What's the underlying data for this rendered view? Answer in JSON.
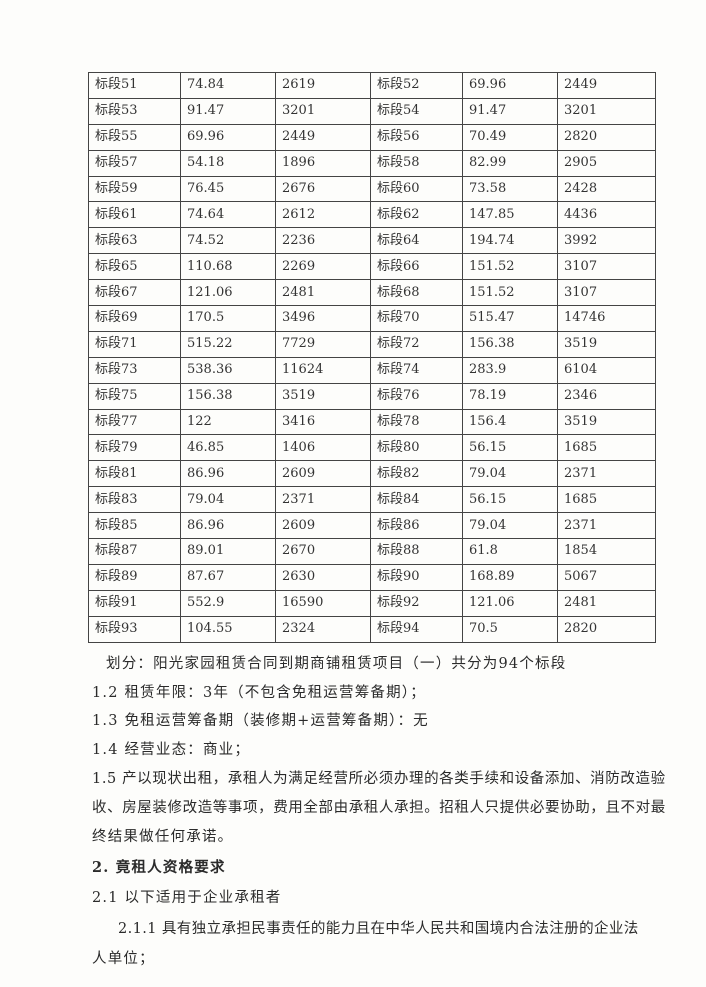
{
  "table": {
    "rows": [
      [
        "标段51",
        "74.84",
        "2619",
        "标段52",
        "69.96",
        "2449"
      ],
      [
        "标段53",
        "91.47",
        "3201",
        "标段54",
        "91.47",
        "3201"
      ],
      [
        "标段55",
        "69.96",
        "2449",
        "标段56",
        "70.49",
        "2820"
      ],
      [
        "标段57",
        "54.18",
        "1896",
        "标段58",
        "82.99",
        "2905"
      ],
      [
        "标段59",
        "76.45",
        "2676",
        "标段60",
        "73.58",
        "2428"
      ],
      [
        "标段61",
        "74.64",
        "2612",
        "标段62",
        "147.85",
        "4436"
      ],
      [
        "标段63",
        "74.52",
        "2236",
        "标段64",
        "194.74",
        "3992"
      ],
      [
        "标段65",
        "110.68",
        "2269",
        "标段66",
        "151.52",
        "3107"
      ],
      [
        "标段67",
        "121.06",
        "2481",
        "标段68",
        "151.52",
        "3107"
      ],
      [
        "标段69",
        "170.5",
        "3496",
        "标段70",
        "515.47",
        "14746"
      ],
      [
        "标段71",
        "515.22",
        "7729",
        "标段72",
        "156.38",
        "3519"
      ],
      [
        "标段73",
        "538.36",
        "11624",
        "标段74",
        "283.9",
        "6104"
      ],
      [
        "标段75",
        "156.38",
        "3519",
        "标段76",
        "78.19",
        "2346"
      ],
      [
        "标段77",
        "122",
        "3416",
        "标段78",
        "156.4",
        "3519"
      ],
      [
        "标段79",
        "46.85",
        "1406",
        "标段80",
        "56.15",
        "1685"
      ],
      [
        "标段81",
        "86.96",
        "2609",
        "标段82",
        "79.04",
        "2371"
      ],
      [
        "标段83",
        "79.04",
        "2371",
        "标段84",
        "56.15",
        "1685"
      ],
      [
        "标段85",
        "86.96",
        "2609",
        "标段86",
        "79.04",
        "2371"
      ],
      [
        "标段87",
        "89.01",
        "2670",
        "标段88",
        "61.8",
        "1854"
      ],
      [
        "标段89",
        "87.67",
        "2630",
        "标段90",
        "168.89",
        "5067"
      ],
      [
        "标段91",
        "552.9",
        "16590",
        "标段92",
        "121.06",
        "2481"
      ],
      [
        "标段93",
        "104.55",
        "2324",
        "标段94",
        "70.5",
        "2820"
      ]
    ]
  },
  "body": {
    "division": "划分：阳光家园租赁合同到期商铺租赁项目（一）共分为94个标段",
    "item_1_2": "1.2 租赁年限：3年（不包含免租运营筹备期）；",
    "item_1_3": "1.3 免租运营筹备期（装修期+运营筹备期）：无",
    "item_1_4": "1.4 经营业态：商业；",
    "item_1_5_line1": "1.5 产以现状出租，承租人为满足经营所必须办理的各类手续和设备添加、消防改造验",
    "item_1_5_line2": "收、房屋装修改造等事项，费用全部由承租人承担。招租人只提供必要协助，且不对最",
    "item_1_5_line3": "终结果做任何承诺。",
    "section_2_heading": "2. 竟租人资格要求",
    "item_2_1": "2.1  以下适用于企业承租者",
    "item_2_1_1_line1": "2.1.1 具有独立承担民事责任的能力且在中华人民共和国境内合法注册的企业法",
    "item_2_1_1_line2": "人单位；"
  }
}
